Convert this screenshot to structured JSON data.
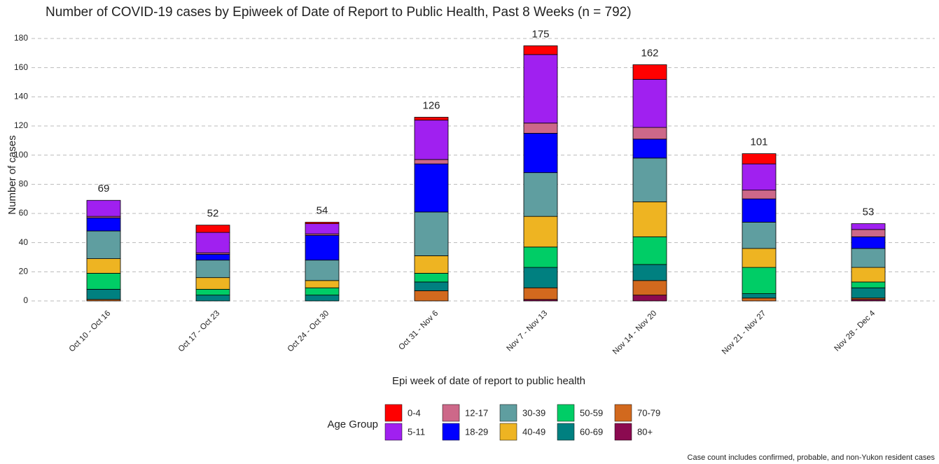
{
  "chart_data": {
    "type": "stacked_bar",
    "title": "Number of COVID-19 cases by Epiweek of Date of Report to Public Health, Past 8 Weeks (n = 792)",
    "x_label": "Epi week of date of report to public health",
    "y_label": "Number of cases",
    "legend_title": "Age Group",
    "footnote": "Case count includes confirmed, probable, and non-Yukon resident cases",
    "categories": [
      "Oct 10 - Oct 16",
      "Oct 17 - Oct 23",
      "Oct 24 - Oct 30",
      "Oct 31 - Nov 6",
      "Nov 7 - Nov 13",
      "Nov 14 - Nov 20",
      "Nov 21 - Nov 27",
      "Nov 28 - Dec 4"
    ],
    "totals": [
      69,
      52,
      54,
      126,
      175,
      162,
      101,
      53
    ],
    "series": [
      {
        "name": "0-4",
        "color": "#ff0000",
        "values": [
          0,
          5,
          1,
          2,
          6,
          10,
          7,
          0
        ]
      },
      {
        "name": "5-11",
        "color": "#a020f0",
        "values": [
          11,
          14,
          7,
          27,
          47,
          33,
          18,
          4
        ]
      },
      {
        "name": "12-17",
        "color": "#cd6889",
        "values": [
          1,
          1,
          1,
          3,
          7,
          8,
          6,
          5
        ]
      },
      {
        "name": "18-29",
        "color": "#0000ff",
        "values": [
          9,
          4,
          17,
          33,
          27,
          13,
          16,
          8
        ]
      },
      {
        "name": "30-39",
        "color": "#5f9ea0",
        "values": [
          19,
          12,
          14,
          30,
          30,
          30,
          18,
          13
        ]
      },
      {
        "name": "40-49",
        "color": "#eeb422",
        "values": [
          10,
          8,
          5,
          12,
          21,
          24,
          13,
          10
        ]
      },
      {
        "name": "50-59",
        "color": "#00cd66",
        "values": [
          11,
          4,
          5,
          6,
          14,
          19,
          18,
          4
        ]
      },
      {
        "name": "60-69",
        "color": "#008080",
        "values": [
          7,
          4,
          4,
          6,
          14,
          11,
          3,
          7
        ]
      },
      {
        "name": "70-79",
        "color": "#d2691e",
        "values": [
          1,
          0,
          0,
          7,
          8,
          10,
          2,
          1
        ]
      },
      {
        "name": "80+",
        "color": "#8b0a50",
        "values": [
          0,
          0,
          0,
          0,
          1,
          4,
          0,
          1
        ]
      }
    ],
    "ylim": [
      0,
      180
    ],
    "yticks": [
      0,
      20,
      40,
      60,
      80,
      100,
      120,
      140,
      160,
      180
    ],
    "grid": true
  }
}
